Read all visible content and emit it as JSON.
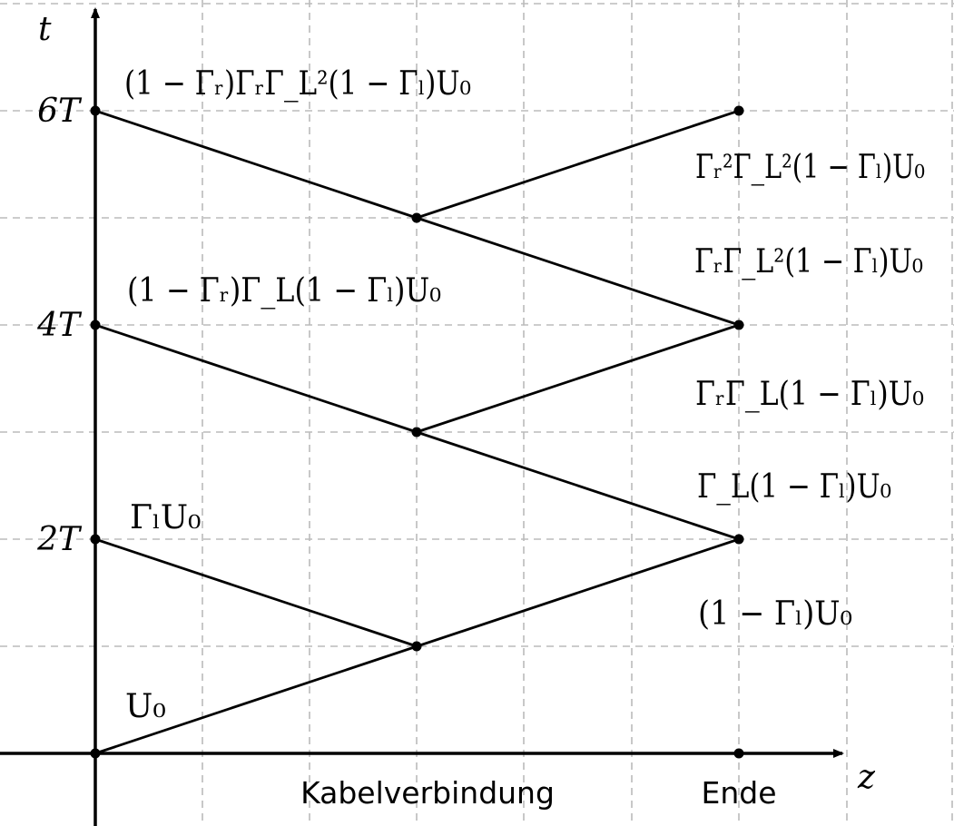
{
  "axes": {
    "t_label": "t",
    "z_label": "z",
    "t_ticks": [
      "2T",
      "4T",
      "6T"
    ]
  },
  "markers": {
    "junction": "Kabelverbindung",
    "end": "Ende"
  },
  "wave_labels": {
    "u0": "U₀",
    "gamma_l_u0": "ΓₗU₀",
    "gen4": "(1 − Γᵣ)Γ_L(1 − Γₗ)U₀",
    "gen6": "(1 − Γᵣ)ΓᵣΓ_L²(1 − Γₗ)U₀",
    "r1": "(1 − Γₗ)U₀",
    "r2": "Γ_L(1 − Γₗ)U₀",
    "r3": "ΓᵣΓ_L(1 − Γₗ)U₀",
    "r4": "ΓᵣΓ_L²(1 − Γₗ)U₀",
    "r5": "Γᵣ²Γ_L²(1 − Γₗ)U₀"
  },
  "colors": {
    "line": "#000000",
    "grid": "#bbbbbb"
  }
}
